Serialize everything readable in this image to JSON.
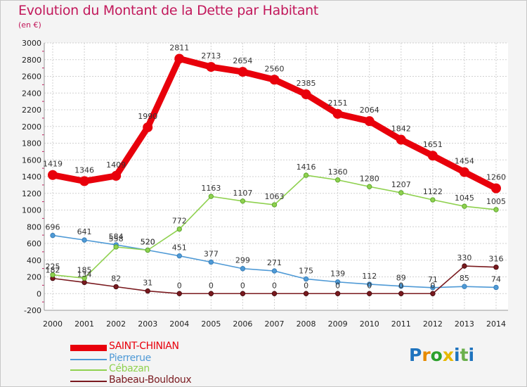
{
  "title": "Evolution du Montant de la Dette par Habitant",
  "subtitle": "(en €)",
  "logo": {
    "text": "Proxiti",
    "letters": [
      "P",
      "r",
      "o",
      "x",
      "i",
      "t",
      "i"
    ],
    "letter_colors": [
      "#1e73be",
      "#e68a00",
      "#2ca02c",
      "#e6b800",
      "#1e73be",
      "#6ab04c",
      "#1e73be"
    ]
  },
  "chart_data": {
    "type": "line",
    "x": [
      2000,
      2001,
      2002,
      2003,
      2004,
      2005,
      2006,
      2007,
      2008,
      2009,
      2010,
      2011,
      2012,
      2013,
      2014
    ],
    "ylim": [
      -200,
      3000
    ],
    "yticks": [
      -200,
      0,
      200,
      400,
      600,
      800,
      1000,
      1200,
      1400,
      1600,
      1800,
      2000,
      2200,
      2400,
      2600,
      2800,
      3000
    ],
    "grid": true,
    "legend_position": "bottom-left",
    "series": [
      {
        "name": "SAINT-CHINIAN",
        "color": "#e8000b",
        "values": [
          1419,
          1346,
          1409,
          1990,
          2811,
          2713,
          2654,
          2560,
          2385,
          2151,
          2064,
          1842,
          1651,
          1454,
          1260
        ],
        "labels": [
          "1419",
          "1346",
          "1409",
          "1990",
          "2811",
          "2713",
          "2654",
          "2560",
          "2385",
          "2151",
          "2064",
          "1842",
          "1651",
          "1454",
          "1260"
        ]
      },
      {
        "name": "Pierrerue",
        "color": "#4f9ad6",
        "values": [
          696,
          641,
          584,
          520,
          451,
          377,
          299,
          271,
          175,
          139,
          112,
          89,
          71,
          85,
          74
        ],
        "labels": [
          "696",
          "641",
          "584",
          "520",
          "451",
          "377",
          "299",
          "271",
          "175",
          "139",
          "112",
          "89",
          "71",
          "85",
          "74"
        ]
      },
      {
        "name": "Cébazan",
        "color": "#8fd14f",
        "values": [
          225,
          185,
          558,
          520,
          772,
          1163,
          1107,
          1063,
          1416,
          1360,
          1280,
          1207,
          1122,
          1045,
          1005
        ],
        "labels": [
          "225",
          "185",
          "558",
          "520",
          "772",
          "1163",
          "1107",
          "1063",
          "1416",
          "1360",
          "1280",
          "1207",
          "1122",
          "1045",
          "1005"
        ]
      },
      {
        "name": "Babeau-Bouldoux",
        "color": "#7a1a1f",
        "values": [
          182,
          134,
          82,
          31,
          0,
          0,
          0,
          0,
          0,
          0,
          0,
          0,
          0,
          330,
          316
        ],
        "labels": [
          "182",
          "134",
          "82",
          "31",
          "0",
          "0",
          "0",
          "0",
          "0",
          "0",
          "0",
          "0",
          "0",
          "330",
          "316"
        ]
      }
    ]
  }
}
